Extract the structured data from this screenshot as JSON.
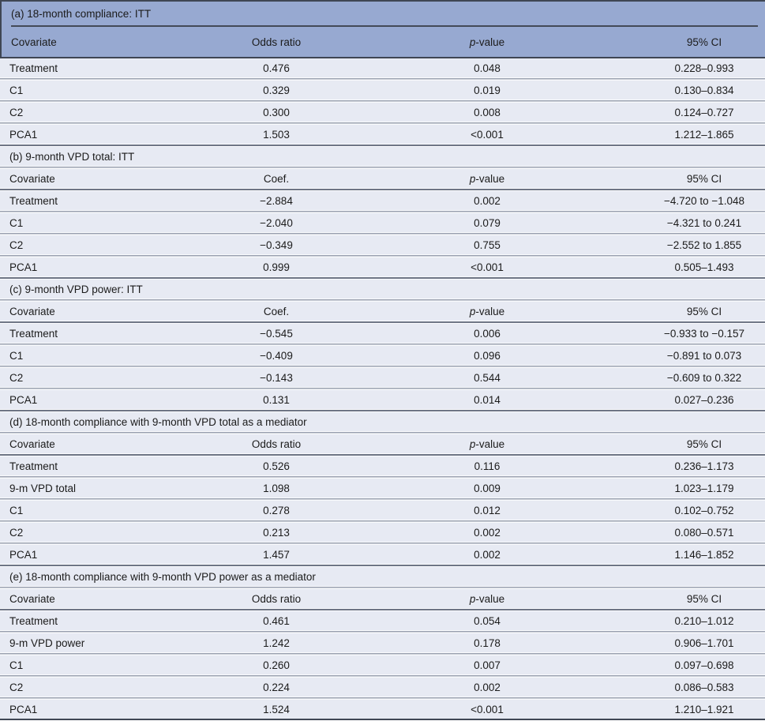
{
  "colors": {
    "header_bg": "#97a9d1",
    "row_bg": "#e7eaf3",
    "dark_line": "#3f4654",
    "medium_line": "#6e7585",
    "light_line": "#9aa1b0",
    "gap_white": "#fafbfd",
    "text": "#1b1b1b"
  },
  "sections": [
    {
      "id": "a",
      "title": "(a) 18-month compliance: ITT",
      "columns": [
        "Covariate",
        "Odds ratio",
        "p-value",
        "95% CI"
      ],
      "rows": [
        [
          "Treatment",
          "0.476",
          "0.048",
          "0.228–0.993"
        ],
        [
          "C1",
          "0.329",
          "0.019",
          "0.130–0.834"
        ],
        [
          "C2",
          "0.300",
          "0.008",
          "0.124–0.727"
        ],
        [
          "PCA1",
          "1.503",
          "<0.001",
          "1.212–1.865"
        ]
      ]
    },
    {
      "id": "b",
      "title": "(b) 9-month VPD total: ITT",
      "columns": [
        "Covariate",
        "Coef.",
        "p-value",
        "95% CI"
      ],
      "rows": [
        [
          "Treatment",
          "−2.884",
          "0.002",
          "−4.720 to −1.048"
        ],
        [
          "C1",
          "−2.040",
          "0.079",
          "−4.321 to 0.241"
        ],
        [
          "C2",
          "−0.349",
          "0.755",
          "−2.552 to 1.855"
        ],
        [
          "PCA1",
          "0.999",
          "<0.001",
          "0.505–1.493"
        ]
      ]
    },
    {
      "id": "c",
      "title": "(c) 9-month VPD power: ITT",
      "columns": [
        "Covariate",
        "Coef.",
        "p-value",
        "95% CI"
      ],
      "rows": [
        [
          "Treatment",
          "−0.545",
          "0.006",
          "−0.933 to −0.157"
        ],
        [
          "C1",
          "−0.409",
          "0.096",
          "−0.891 to 0.073"
        ],
        [
          "C2",
          "−0.143",
          "0.544",
          "−0.609 to 0.322"
        ],
        [
          "PCA1",
          "0.131",
          "0.014",
          "0.027–0.236"
        ]
      ]
    },
    {
      "id": "d",
      "title": "(d) 18-month compliance with 9-month VPD total as a mediator",
      "columns": [
        "Covariate",
        "Odds ratio",
        "p-value",
        "95% CI"
      ],
      "rows": [
        [
          "Treatment",
          "0.526",
          "0.116",
          "0.236–1.173"
        ],
        [
          "9-m VPD total",
          "1.098",
          "0.009",
          "1.023–1.179"
        ],
        [
          "C1",
          "0.278",
          "0.012",
          "0.102–0.752"
        ],
        [
          "C2",
          "0.213",
          "0.002",
          "0.080–0.571"
        ],
        [
          "PCA1",
          "1.457",
          "0.002",
          "1.146–1.852"
        ]
      ]
    },
    {
      "id": "e",
      "title": "(e) 18-month compliance with 9-month VPD power as a mediator",
      "columns": [
        "Covariate",
        "Odds ratio",
        "p-value",
        "95% CI"
      ],
      "rows": [
        [
          "Treatment",
          "0.461",
          "0.054",
          "0.210–1.012"
        ],
        [
          "9-m VPD power",
          "1.242",
          "0.178",
          "0.906–1.701"
        ],
        [
          "C1",
          "0.260",
          "0.007",
          "0.097–0.698"
        ],
        [
          "C2",
          "0.224",
          "0.002",
          "0.086–0.583"
        ],
        [
          "PCA1",
          "1.524",
          "<0.001",
          "1.210–1.921"
        ]
      ]
    }
  ]
}
